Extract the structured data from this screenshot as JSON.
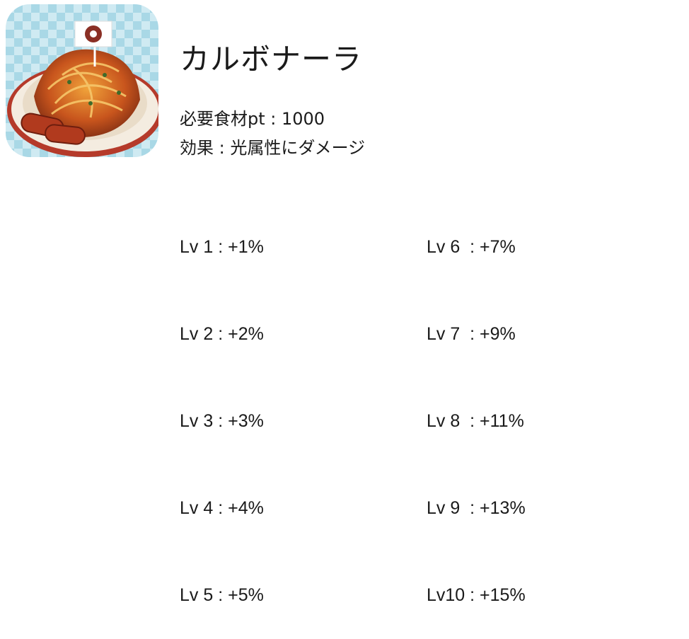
{
  "title": "カルボナーラ",
  "ingredient_points": "必要食材pt : 1000",
  "effect": "効果 : 光属性にダメージ",
  "levels_left": [
    "Lv 1 : +1%",
    "Lv 2 : +2%",
    "Lv 3 : +3%",
    "Lv 4 : +4%",
    "Lv 5 : +5%"
  ],
  "levels_right": [
    "Lv 6  : +7%",
    "Lv 7  : +9%",
    "Lv 8  : +11%",
    "Lv 9  : +13%",
    "Lv10 : +15%"
  ],
  "icon": "pasta-dish-icon",
  "colors": {
    "icon_bg": "#a9d8e6",
    "icon_check": "#cfeaf2",
    "text": "#1a1a1a",
    "plate": "#f4ece0"
  }
}
